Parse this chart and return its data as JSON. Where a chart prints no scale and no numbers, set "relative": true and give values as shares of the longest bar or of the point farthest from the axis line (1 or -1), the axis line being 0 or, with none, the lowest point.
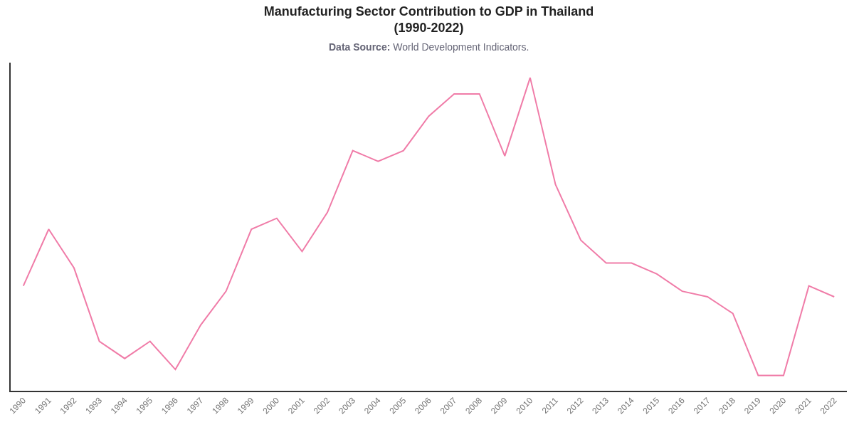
{
  "chart_data": {
    "type": "line",
    "title": "Manufacturing Sector Contribution to GDP in Thailand\n(1990-2022)",
    "subtitle": "Data Source: World Development Indicators.",
    "categories": [
      "1990",
      "1991",
      "1992",
      "1993",
      "1994",
      "1995",
      "1996",
      "1997",
      "1998",
      "1999",
      "2000",
      "2001",
      "2002",
      "2003",
      "2004",
      "2005",
      "2006",
      "2007",
      "2008",
      "2009",
      "2010",
      "2011",
      "2012",
      "2013",
      "2014",
      "2015",
      "2016",
      "2017",
      "2018",
      "2019",
      "2020",
      "2021",
      "2022"
    ],
    "series": [
      {
        "color": "#f07ca8",
        "values": [
          0.335,
          0.516,
          0.392,
          0.158,
          0.103,
          0.158,
          0.068,
          0.21,
          0.318,
          0.516,
          0.551,
          0.445,
          0.57,
          0.767,
          0.733,
          0.767,
          0.877,
          0.948,
          0.948,
          0.75,
          1,
          0.659,
          0.481,
          0.408,
          0.408,
          0.373,
          0.318,
          0.3,
          0.247,
          0.049,
          0.049,
          0.335,
          0.3
        ]
      }
    ],
    "relative": true,
    "grid": false
  }
}
